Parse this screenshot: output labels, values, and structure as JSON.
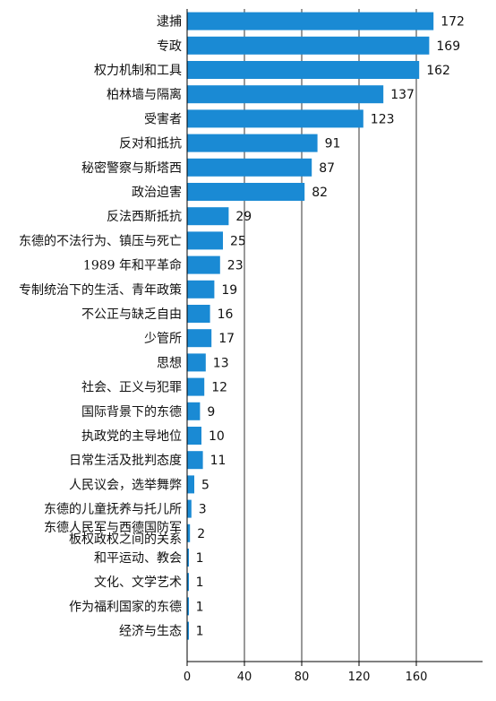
{
  "chart_data": {
    "type": "bar",
    "orientation": "horizontal",
    "categories": [
      "逮捕",
      "专政",
      "权力机制和工具",
      "柏林墙与隔离",
      "受害者",
      "反对和抵抗",
      "秘密警察与斯塔西",
      "政治迫害",
      "反法西斯抵抗",
      "东德的不法行为、镇压与死亡",
      "1989 年和平革命",
      "专制统治下的生活、青年政策",
      "不公正与缺乏自由",
      "少管所",
      "思想",
      "社会、正义与犯罪",
      "国际背景下的东德",
      "执政党的主导地位",
      "日常生活及批判态度",
      "人民议会，选举舞弊",
      "东德的儿童抚养与托儿所",
      "东德人民军与西德国防军板权政权之间的关系",
      "和平运动、教会",
      "文化、文学艺术",
      "作为福利国家的东德",
      "经济与生态"
    ],
    "values": [
      172,
      169,
      162,
      137,
      123,
      91,
      87,
      82,
      29,
      25,
      23,
      19,
      16,
      17,
      13,
      12,
      9,
      10,
      11,
      5,
      3,
      2,
      1,
      1,
      1,
      1
    ],
    "title": "",
    "xlabel": "",
    "ylabel": "",
    "xlim": [
      0,
      200
    ],
    "xticks": [
      "0",
      "40",
      "80",
      "120",
      "160"
    ],
    "grid": "vertical",
    "bar_color": "#1a8ad4",
    "grid_color": "#333333"
  }
}
